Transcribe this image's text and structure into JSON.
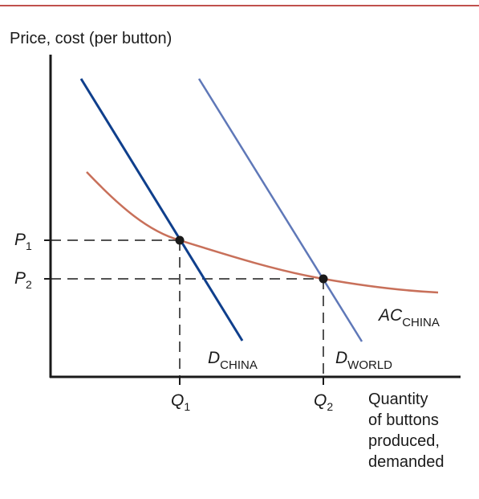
{
  "y_axis_label": "Price, cost (per button)",
  "x_axis_label": [
    "Quantity",
    "of buttons",
    "produced,",
    "demanded"
  ],
  "price_labels": [
    {
      "main": "P",
      "sub": "1"
    },
    {
      "main": "P",
      "sub": "2"
    }
  ],
  "quantity_labels": [
    {
      "main": "Q",
      "sub": "1"
    },
    {
      "main": "Q",
      "sub": "2"
    }
  ],
  "curve_labels": {
    "d_china": {
      "main": "D",
      "sub": "CHINA"
    },
    "d_world": {
      "main": "D",
      "sub": "WORLD"
    },
    "ac_china": {
      "main": "AC",
      "sub": "CHINA"
    }
  },
  "colors": {
    "d_china": "#0f3f8c",
    "d_world": "#5f78b8",
    "ac_china": "#c8705a",
    "axis": "#1a1a1a",
    "rule": "#c0504d"
  }
}
